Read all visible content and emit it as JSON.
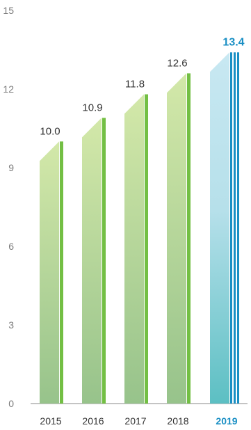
{
  "chart_data": {
    "type": "bar",
    "categories": [
      "2015",
      "2016",
      "2017",
      "2018",
      "2019"
    ],
    "values": [
      10.0,
      10.9,
      11.8,
      12.6,
      13.4
    ],
    "value_labels": [
      "10.0",
      "10.9",
      "11.8",
      "12.6",
      "13.4"
    ],
    "highlight": "2019",
    "ylim": [
      0,
      15
    ],
    "yticks": [
      "0",
      "3",
      "6",
      "9",
      "12",
      "15"
    ],
    "grid": false,
    "colors": {
      "bar_top": "#d3e8a9",
      "bar_bottom": "#97c38b",
      "bar_stripe": "#73bf44",
      "hl_top": "#c8e8f2",
      "hl_bottom": "#5cbfc3",
      "hl_stripe": "#1a8fc4",
      "axis": "#8a8a8a",
      "hl_text": "#1a8fc4"
    }
  }
}
